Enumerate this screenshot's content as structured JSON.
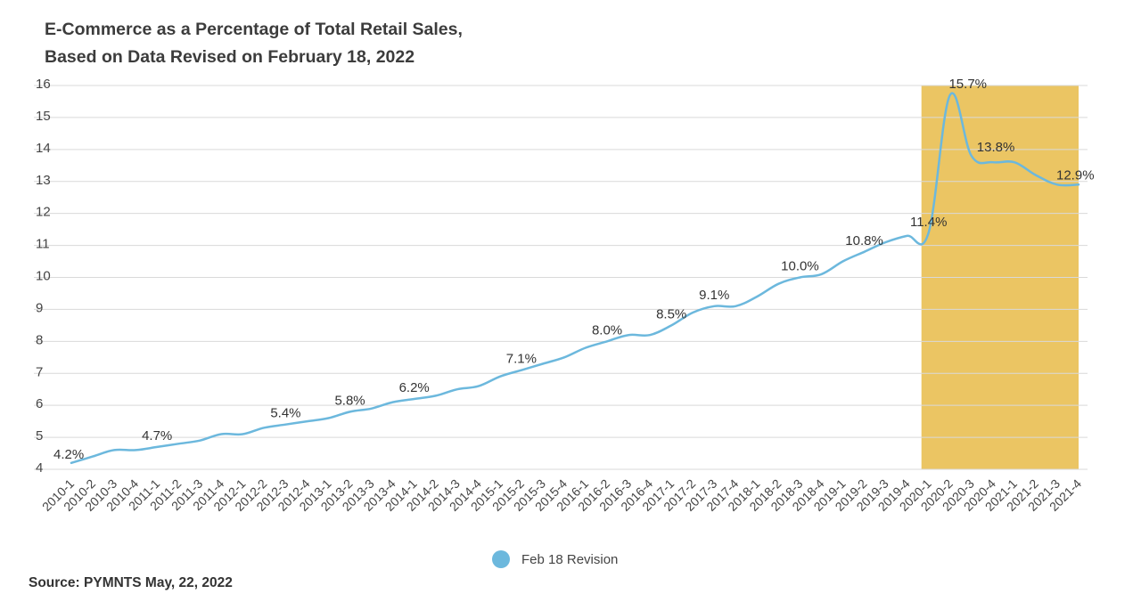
{
  "title_line1": "E-Commerce as a Percentage of Total Retail Sales,",
  "title_line2": "Based on Data Revised on February 18, 2022",
  "source": "Source: PYMNTS May, 22, 2022",
  "colors": {
    "line": "#6cb8dd",
    "highlight": "#ebc563",
    "grid": "#d9d9d9",
    "text": "#333333"
  },
  "chart_data": {
    "type": "line",
    "categories": [
      "2010-1",
      "2010-2",
      "2010-3",
      "2010-4",
      "2011-1",
      "2011-2",
      "2011-3",
      "2011-4",
      "2012-1",
      "2012-2",
      "2012-3",
      "2012-4",
      "2013-1",
      "2013-2",
      "2013-3",
      "2013-4",
      "2014-1",
      "2014-2",
      "2014-3",
      "2014-4",
      "2015-1",
      "2015-2",
      "2015-3",
      "2015-4",
      "2016-1",
      "2016-2",
      "2016-3",
      "2016-4",
      "2017-1",
      "2017-2",
      "2017-3",
      "2017-4",
      "2018-1",
      "2018-2",
      "2018-3",
      "2018-4",
      "2019-1",
      "2019-2",
      "2019-3",
      "2019-4",
      "2020-1",
      "2020-2",
      "2020-3",
      "2020-4",
      "2021-1",
      "2021-2",
      "2021-3",
      "2021-4"
    ],
    "series": [
      {
        "name": "Feb 18 Revision",
        "values": [
          4.2,
          4.4,
          4.6,
          4.6,
          4.7,
          4.8,
          4.9,
          5.1,
          5.1,
          5.3,
          5.4,
          5.5,
          5.6,
          5.8,
          5.9,
          6.1,
          6.2,
          6.3,
          6.5,
          6.6,
          6.9,
          7.1,
          7.3,
          7.5,
          7.8,
          8.0,
          8.2,
          8.2,
          8.5,
          8.9,
          9.1,
          9.1,
          9.4,
          9.8,
          10.0,
          10.1,
          10.5,
          10.8,
          11.1,
          11.3,
          11.4,
          15.7,
          13.8,
          13.6,
          13.6,
          13.2,
          12.9,
          12.9
        ]
      }
    ],
    "data_labels": [
      {
        "category": "2010-1",
        "text": "4.2%"
      },
      {
        "category": "2011-1",
        "text": "4.7%"
      },
      {
        "category": "2012-3",
        "text": "5.4%"
      },
      {
        "category": "2013-2",
        "text": "5.8%"
      },
      {
        "category": "2014-1",
        "text": "6.2%"
      },
      {
        "category": "2015-2",
        "text": "7.1%"
      },
      {
        "category": "2016-2",
        "text": "8.0%"
      },
      {
        "category": "2017-1",
        "text": "8.5%"
      },
      {
        "category": "2017-3",
        "text": "9.1%"
      },
      {
        "category": "2018-3",
        "text": "10.0%"
      },
      {
        "category": "2019-2",
        "text": "10.8%"
      },
      {
        "category": "2020-1",
        "text": "11.4%"
      },
      {
        "category": "2020-2",
        "text": "15.7%"
      },
      {
        "category": "2020-3",
        "text": "13.8%"
      },
      {
        "category": "2021-4",
        "text": "12.9%"
      }
    ],
    "highlight_range": [
      "2020-1",
      "2021-4"
    ],
    "ylim": [
      4,
      16
    ],
    "yticks": [
      4,
      5,
      6,
      7,
      8,
      9,
      10,
      11,
      12,
      13,
      14,
      15,
      16
    ],
    "grid": true,
    "legend_position": "bottom-center",
    "xlabel": "",
    "ylabel": ""
  }
}
